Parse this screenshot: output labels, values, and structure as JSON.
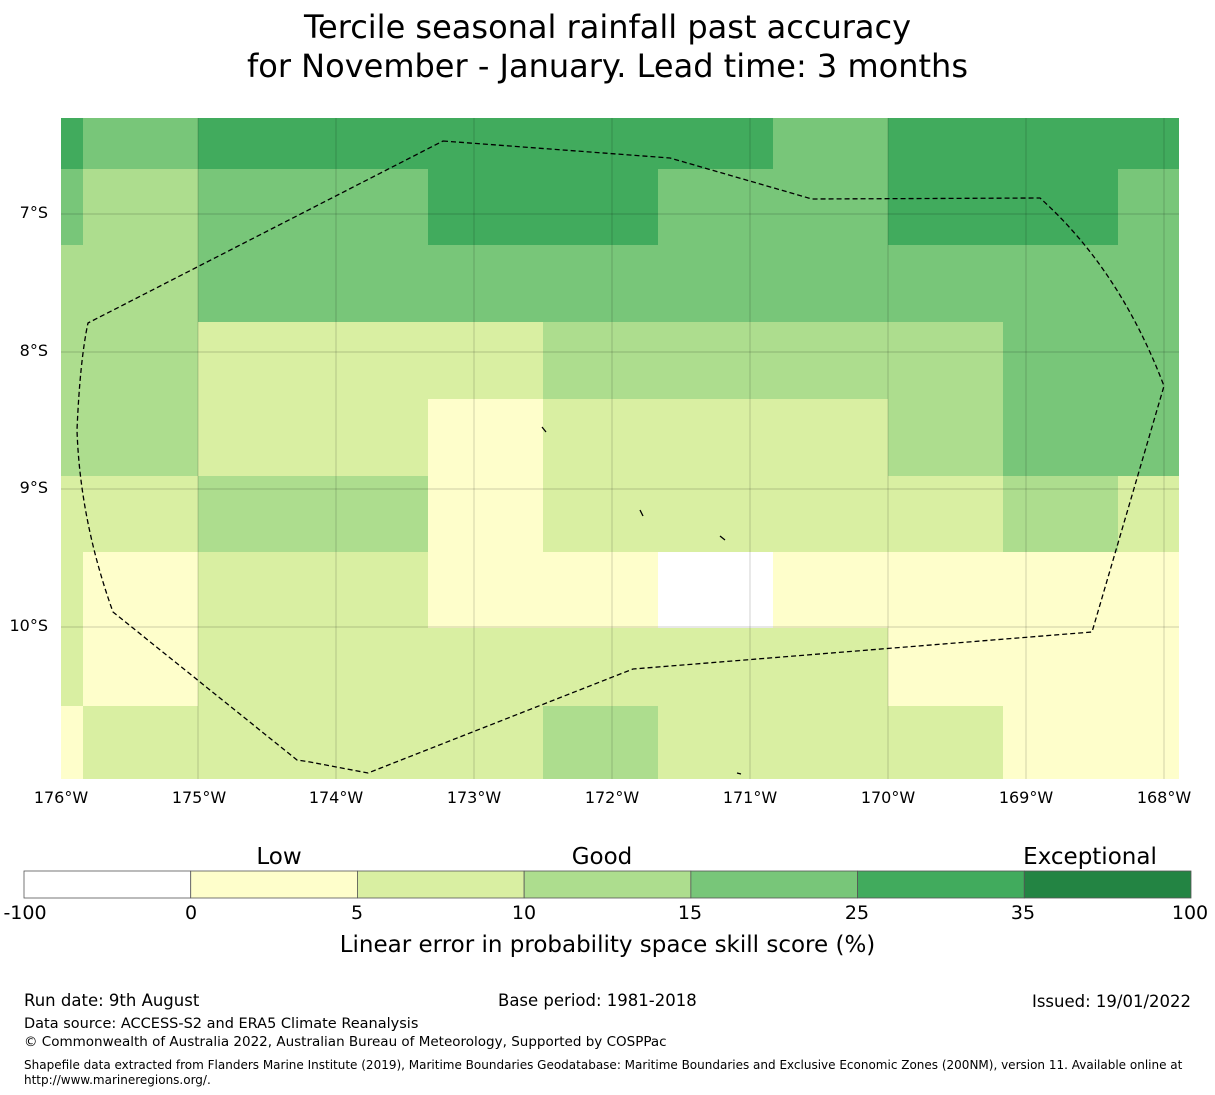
{
  "title": {
    "line1": "Tercile seasonal rainfall past accuracy",
    "line2": "for November - January. Lead time: 3 months"
  },
  "map": {
    "lat_labels": [
      "7°S",
      "8°S",
      "9°S",
      "10°S"
    ],
    "lon_labels": [
      "176°W",
      "175°W",
      "174°W",
      "173°W",
      "172°W",
      "171°W",
      "170°W",
      "169°W",
      "168°W"
    ],
    "boundary_style": "dashed black line (EEZ boundary)"
  },
  "legend": {
    "categories": [
      "Low",
      "Good",
      "Exceptional"
    ],
    "ticks": [
      "-100",
      "0",
      "5",
      "10",
      "15",
      "25",
      "35",
      "100"
    ],
    "colors": [
      "#ffffff",
      "#fefecb",
      "#d9efa2",
      "#addd8e",
      "#78c679",
      "#41ab5d",
      "#238443"
    ],
    "title": "Linear error in probability space skill score (%)"
  },
  "footer": {
    "run_date": "Run date: 9th August",
    "base_period": "Base period: 1981-2018",
    "issued": "Issued: 19/01/2022",
    "data_source": "Data source: ACCESS-S2 and ERA5 Climate Reanalysis",
    "copyright": "© Commonwealth of Australia 2022, Australian Bureau of Meteorology, Supported by COSPPac",
    "shapefile_line1": "Shapefile data extracted from Flanders Marine Institute (2019), Maritime Boundaries Geodatabase: Maritime Boundaries and Exclusive Economic Zones (200NM), version 11. Available online at",
    "shapefile_line2": "http://www.marineregions.org/."
  }
}
